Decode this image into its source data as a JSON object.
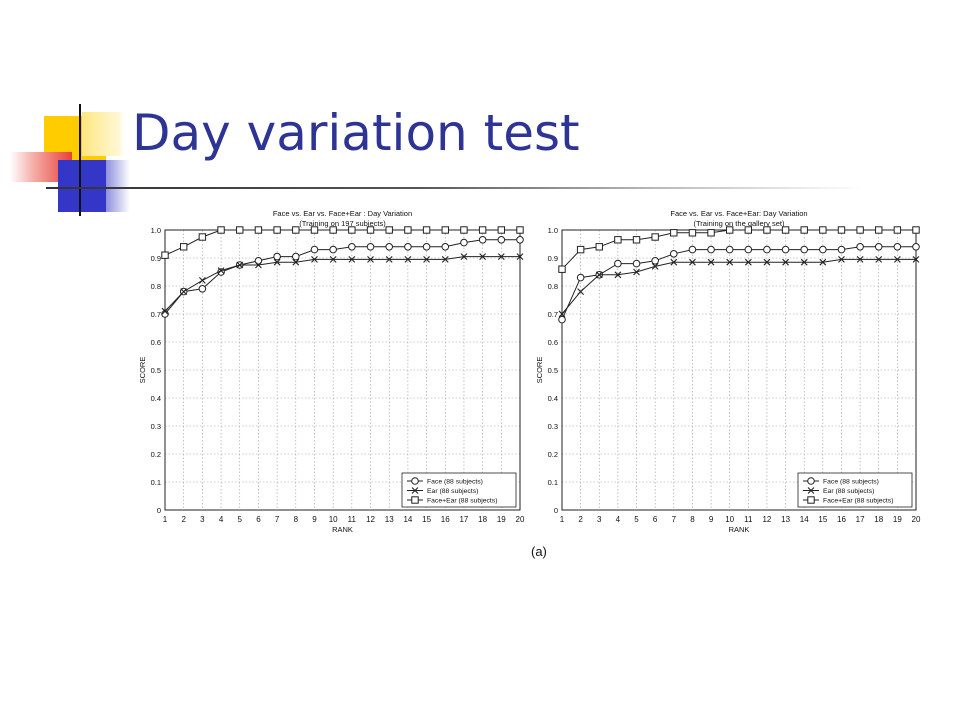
{
  "slide": {
    "title": "Day variation test",
    "caption": "(a)"
  },
  "colors": {
    "title": "#2d3494",
    "deco_yellow": "#ffcc00",
    "deco_red": "#e8403a",
    "deco_blue": "#3336c6"
  },
  "chart_data": [
    {
      "type": "line",
      "title": "Face vs. Ear vs. Face+Ear : Day Variation",
      "subtitle": "(Training on 197 subjects)",
      "xlabel": "RANK",
      "ylabel": "SCORE",
      "x": [
        1,
        2,
        3,
        4,
        5,
        6,
        7,
        8,
        9,
        10,
        11,
        12,
        13,
        14,
        15,
        16,
        17,
        18,
        19,
        20
      ],
      "xlim": [
        1,
        20
      ],
      "ylim": [
        0,
        1.0
      ],
      "yticks": [
        "0",
        "0.1",
        "0.2",
        "0.3",
        "0.4",
        "0.5",
        "0.6",
        "0.7",
        "0.8",
        "0.9",
        "1.0"
      ],
      "grid": true,
      "legend_position": "bottom-right",
      "series": [
        {
          "name": "Face (88 subjects)",
          "marker": "circle",
          "values": [
            0.7,
            0.78,
            0.79,
            0.85,
            0.875,
            0.89,
            0.905,
            0.905,
            0.93,
            0.93,
            0.94,
            0.94,
            0.94,
            0.94,
            0.94,
            0.94,
            0.955,
            0.965,
            0.965,
            0.965
          ]
        },
        {
          "name": "Ear (88 subjects)",
          "marker": "x",
          "values": [
            0.71,
            0.78,
            0.82,
            0.855,
            0.875,
            0.875,
            0.885,
            0.885,
            0.895,
            0.895,
            0.895,
            0.895,
            0.895,
            0.895,
            0.895,
            0.895,
            0.905,
            0.905,
            0.905,
            0.905
          ]
        },
        {
          "name": "Face+Ear (88 subjects)",
          "marker": "square",
          "values": [
            0.91,
            0.94,
            0.975,
            1.0,
            1.0,
            1.0,
            1.0,
            1.0,
            1.0,
            1.0,
            1.0,
            1.0,
            1.0,
            1.0,
            1.0,
            1.0,
            1.0,
            1.0,
            1.0,
            1.0
          ]
        }
      ]
    },
    {
      "type": "line",
      "title": "Face vs. Ear vs. Face+Ear: Day Variation",
      "subtitle": "(Training on the gallery set)",
      "xlabel": "RANK",
      "ylabel": "SCORE",
      "x": [
        1,
        2,
        3,
        4,
        5,
        6,
        7,
        8,
        9,
        10,
        11,
        12,
        13,
        14,
        15,
        16,
        17,
        18,
        19,
        20
      ],
      "xlim": [
        1,
        20
      ],
      "ylim": [
        0,
        1.0
      ],
      "yticks": [
        "0",
        "0.1",
        "0.2",
        "0.3",
        "0.4",
        "0.5",
        "0.6",
        "0.7",
        "0.8",
        "0.9",
        "1.0"
      ],
      "grid": true,
      "legend_position": "bottom-right",
      "series": [
        {
          "name": "Face (88 subjects)",
          "marker": "circle",
          "values": [
            0.68,
            0.83,
            0.84,
            0.88,
            0.88,
            0.89,
            0.915,
            0.93,
            0.93,
            0.93,
            0.93,
            0.93,
            0.93,
            0.93,
            0.93,
            0.93,
            0.94,
            0.94,
            0.94,
            0.94
          ]
        },
        {
          "name": "Ear (88 subjects)",
          "marker": "x",
          "values": [
            0.7,
            0.78,
            0.84,
            0.84,
            0.85,
            0.87,
            0.885,
            0.885,
            0.885,
            0.885,
            0.885,
            0.885,
            0.885,
            0.885,
            0.885,
            0.895,
            0.895,
            0.895,
            0.895,
            0.895
          ]
        },
        {
          "name": "Face+Ear (88 subjects)",
          "marker": "square",
          "values": [
            0.86,
            0.93,
            0.94,
            0.965,
            0.965,
            0.975,
            0.99,
            0.99,
            0.99,
            1.0,
            1.0,
            1.0,
            1.0,
            1.0,
            1.0,
            1.0,
            1.0,
            1.0,
            1.0,
            1.0
          ]
        }
      ]
    }
  ]
}
